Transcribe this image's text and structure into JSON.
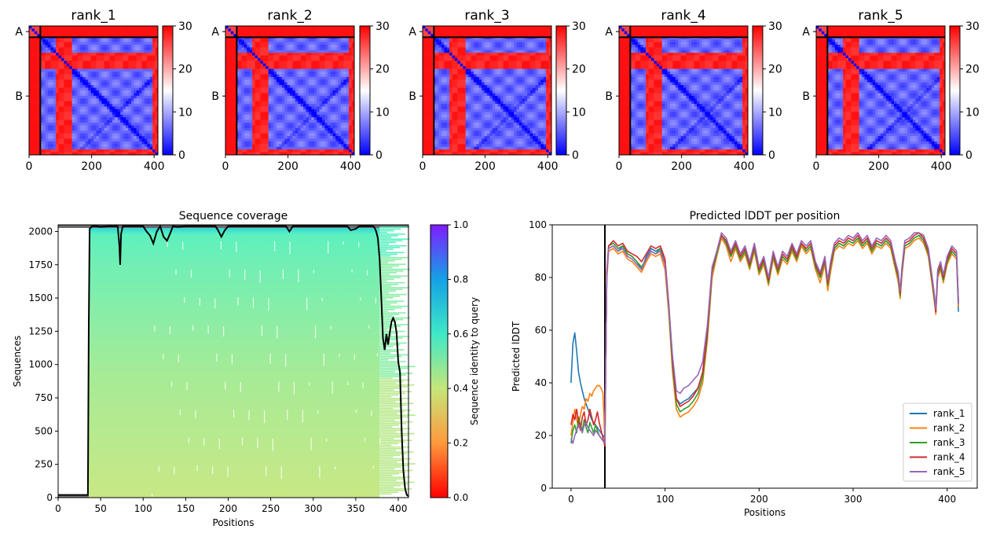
{
  "chart_data": [
    {
      "type": "heatmap",
      "kind": "pae",
      "title": "rank_1",
      "x_ticks": [
        0,
        200,
        400
      ],
      "y_ticks": [
        "A",
        "B"
      ],
      "chain_a_length": 36,
      "length": 412,
      "colorbar": {
        "ticks": [
          0,
          10,
          20,
          30
        ],
        "range": [
          0,
          30
        ],
        "colormap": "bwr"
      }
    },
    {
      "type": "heatmap",
      "kind": "pae",
      "title": "rank_2",
      "x_ticks": [
        0,
        200,
        400
      ],
      "y_ticks": [
        "A",
        "B"
      ],
      "chain_a_length": 36,
      "length": 412,
      "colorbar": {
        "ticks": [
          0,
          10,
          20,
          30
        ],
        "range": [
          0,
          30
        ],
        "colormap": "bwr"
      }
    },
    {
      "type": "heatmap",
      "kind": "pae",
      "title": "rank_3",
      "x_ticks": [
        0,
        200,
        400
      ],
      "y_ticks": [
        "A",
        "B"
      ],
      "chain_a_length": 36,
      "length": 412,
      "colorbar": {
        "ticks": [
          0,
          10,
          20,
          30
        ],
        "range": [
          0,
          30
        ],
        "colormap": "bwr"
      }
    },
    {
      "type": "heatmap",
      "kind": "pae",
      "title": "rank_4",
      "x_ticks": [
        0,
        200,
        400
      ],
      "y_ticks": [
        "A",
        "B"
      ],
      "chain_a_length": 36,
      "length": 412,
      "colorbar": {
        "ticks": [
          0,
          10,
          20,
          30
        ],
        "range": [
          0,
          30
        ],
        "colormap": "bwr"
      }
    },
    {
      "type": "heatmap",
      "kind": "pae",
      "title": "rank_5",
      "x_ticks": [
        0,
        200,
        400
      ],
      "y_ticks": [
        "A",
        "B"
      ],
      "chain_a_length": 36,
      "length": 412,
      "colorbar": {
        "ticks": [
          0,
          10,
          20,
          30
        ],
        "range": [
          0,
          30
        ],
        "colormap": "bwr"
      }
    },
    {
      "type": "heatmap",
      "kind": "coverage",
      "title": "Sequence coverage",
      "xlabel": "Positions",
      "ylabel": "Sequences",
      "xlim": [
        0,
        412
      ],
      "ylim": [
        0,
        2050
      ],
      "x_ticks": [
        0,
        50,
        100,
        150,
        200,
        250,
        300,
        350,
        400
      ],
      "y_ticks": [
        0,
        250,
        500,
        750,
        1000,
        1250,
        1500,
        1750,
        2000
      ],
      "colorbar_label": "Sequence identity to query",
      "colorbar_ticks": [
        0.0,
        0.2,
        0.4,
        0.6,
        0.8,
        1.0
      ],
      "colorbar_tick_labels": [
        "0.0",
        "0.2",
        "0.4",
        "0.6",
        "0.8",
        "1.0"
      ],
      "total_sequences": 2050,
      "query_rows": 20,
      "msa_start": 36,
      "coverage_line": {
        "x": [
          0,
          35,
          36,
          37,
          40,
          45,
          50,
          60,
          70,
          72,
          73,
          74,
          76,
          80,
          100,
          104,
          108,
          112,
          116,
          120,
          124,
          128,
          132,
          135,
          140,
          150,
          160,
          185,
          188,
          192,
          196,
          200,
          220,
          250,
          268,
          272,
          276,
          280,
          300,
          340,
          344,
          350,
          354,
          358,
          360,
          365,
          370,
          372,
          374,
          376,
          378,
          380,
          382,
          384,
          386,
          388,
          390,
          392,
          394,
          396,
          398,
          400,
          402,
          404,
          406,
          408,
          410,
          412
        ],
        "y": [
          20,
          20,
          1300,
          2020,
          2040,
          2040,
          2035,
          2040,
          2040,
          1900,
          1750,
          1980,
          2040,
          2040,
          2040,
          2000,
          1970,
          1910,
          2000,
          2040,
          1960,
          1930,
          1990,
          2040,
          2035,
          2040,
          2040,
          2040,
          2010,
          1960,
          2010,
          2040,
          2040,
          2040,
          2040,
          2000,
          2040,
          2040,
          2040,
          2040,
          2010,
          2020,
          2040,
          2040,
          2040,
          2040,
          2040,
          2030,
          2000,
          1950,
          1800,
          1500,
          1200,
          1110,
          1230,
          1150,
          1240,
          1320,
          1350,
          1320,
          1240,
          1020,
          940,
          500,
          200,
          70,
          20,
          10
        ]
      }
    },
    {
      "type": "line",
      "title": "Predicted lDDT per position",
      "xlabel": "Positions",
      "ylabel": "Predicted lDDT",
      "xlim": [
        -20,
        432
      ],
      "ylim": [
        0,
        100
      ],
      "x_ticks": [
        0,
        100,
        200,
        300,
        400
      ],
      "y_ticks": [
        0,
        20,
        40,
        60,
        80,
        100
      ],
      "legend": "lower-right",
      "vline_x": 36,
      "x": [
        0,
        2,
        4,
        6,
        8,
        10,
        12,
        14,
        16,
        18,
        20,
        22,
        24,
        26,
        28,
        30,
        32,
        34,
        36,
        38,
        40,
        45,
        50,
        55,
        60,
        65,
        70,
        75,
        80,
        85,
        90,
        95,
        100,
        104,
        108,
        112,
        116,
        120,
        125,
        130,
        135,
        140,
        145,
        150,
        155,
        160,
        165,
        170,
        175,
        180,
        185,
        190,
        195,
        200,
        205,
        210,
        215,
        220,
        225,
        230,
        235,
        240,
        245,
        250,
        255,
        260,
        265,
        270,
        273,
        276,
        280,
        285,
        290,
        295,
        300,
        305,
        310,
        315,
        320,
        325,
        330,
        335,
        340,
        345,
        348,
        350,
        352,
        355,
        360,
        365,
        370,
        375,
        380,
        383,
        386,
        388,
        390,
        393,
        396,
        400,
        405,
        410,
        412
      ],
      "series": [
        {
          "name": "rank_1",
          "color": "#1f77b4",
          "values": [
            40,
            55,
            59,
            52,
            44,
            40,
            37,
            34,
            32,
            30,
            28,
            26,
            25,
            24,
            23,
            22,
            21,
            20,
            19,
            80,
            91,
            92,
            90,
            92,
            89,
            88,
            86,
            83,
            88,
            91,
            90,
            91,
            85,
            68,
            48,
            34,
            32,
            33,
            34,
            36,
            38,
            44,
            60,
            82,
            89,
            96,
            93,
            88,
            92,
            87,
            90,
            84,
            91,
            82,
            86,
            78,
            88,
            82,
            88,
            86,
            91,
            87,
            93,
            90,
            92,
            84,
            80,
            86,
            78,
            84,
            91,
            93,
            92,
            94,
            93,
            95,
            92,
            94,
            90,
            93,
            92,
            94,
            92,
            84,
            80,
            74,
            82,
            92,
            93,
            95,
            96,
            94,
            89,
            82,
            74,
            68,
            82,
            84,
            80,
            86,
            90,
            88,
            67
          ]
        },
        {
          "name": "rank_2",
          "color": "#ff7f0e",
          "values": [
            20,
            25,
            30,
            26,
            23,
            28,
            31,
            30,
            34,
            33,
            36,
            35,
            37,
            38,
            39,
            39,
            38,
            36,
            18,
            79,
            90,
            91,
            89,
            90,
            87,
            86,
            84,
            82,
            86,
            89,
            88,
            89,
            83,
            66,
            44,
            30,
            27,
            28,
            29,
            31,
            34,
            40,
            56,
            80,
            88,
            95,
            92,
            86,
            91,
            86,
            89,
            83,
            90,
            81,
            85,
            77,
            87,
            81,
            87,
            85,
            90,
            86,
            92,
            89,
            91,
            83,
            78,
            85,
            75,
            82,
            90,
            92,
            91,
            93,
            92,
            94,
            91,
            93,
            89,
            92,
            91,
            93,
            91,
            83,
            78,
            72,
            81,
            91,
            92,
            94,
            95,
            93,
            88,
            80,
            72,
            66,
            80,
            83,
            78,
            85,
            89,
            87,
            69
          ]
        },
        {
          "name": "rank_3",
          "color": "#2ca02c",
          "values": [
            17,
            22,
            24,
            21,
            27,
            24,
            22,
            26,
            23,
            21,
            25,
            23,
            21,
            24,
            22,
            20,
            19,
            18,
            17,
            81,
            92,
            93,
            91,
            92,
            89,
            88,
            86,
            84,
            87,
            90,
            89,
            91,
            85,
            68,
            46,
            32,
            29,
            30,
            31,
            33,
            36,
            42,
            58,
            82,
            89,
            96,
            93,
            88,
            92,
            87,
            90,
            84,
            91,
            82,
            86,
            78,
            88,
            82,
            88,
            86,
            91,
            87,
            93,
            90,
            92,
            84,
            80,
            86,
            77,
            84,
            91,
            93,
            92,
            94,
            93,
            95,
            92,
            94,
            90,
            93,
            92,
            94,
            92,
            84,
            80,
            73,
            82,
            92,
            93,
            95,
            96,
            94,
            89,
            81,
            73,
            67,
            81,
            84,
            79,
            86,
            90,
            88,
            70
          ]
        },
        {
          "name": "rank_4",
          "color": "#d62728",
          "values": [
            24,
            28,
            26,
            30,
            25,
            22,
            27,
            29,
            24,
            26,
            30,
            27,
            24,
            26,
            29,
            25,
            22,
            19,
            16,
            82,
            92,
            94,
            92,
            93,
            90,
            89,
            88,
            86,
            89,
            92,
            91,
            92,
            87,
            70,
            48,
            34,
            31,
            32,
            33,
            35,
            38,
            44,
            60,
            83,
            90,
            96,
            94,
            89,
            93,
            88,
            91,
            85,
            92,
            83,
            87,
            79,
            89,
            83,
            89,
            87,
            92,
            88,
            93,
            91,
            93,
            85,
            81,
            87,
            78,
            85,
            92,
            94,
            93,
            95,
            94,
            96,
            93,
            95,
            91,
            94,
            93,
            95,
            93,
            85,
            81,
            74,
            83,
            93,
            94,
            96,
            97,
            95,
            90,
            82,
            74,
            67,
            82,
            85,
            80,
            87,
            91,
            89,
            71
          ]
        },
        {
          "name": "rank_5",
          "color": "#9467bd",
          "values": [
            19,
            17,
            20,
            22,
            24,
            23,
            21,
            24,
            25,
            23,
            22,
            21,
            20,
            22,
            21,
            20,
            19,
            18,
            17,
            80,
            91,
            92,
            90,
            91,
            88,
            87,
            85,
            83,
            87,
            90,
            89,
            90,
            85,
            69,
            50,
            37,
            36,
            38,
            39,
            41,
            43,
            48,
            62,
            84,
            90,
            97,
            95,
            90,
            94,
            89,
            92,
            86,
            93,
            84,
            88,
            80,
            90,
            84,
            90,
            88,
            93,
            89,
            94,
            92,
            94,
            86,
            82,
            88,
            79,
            86,
            93,
            95,
            94,
            96,
            95,
            97,
            94,
            96,
            92,
            95,
            94,
            96,
            94,
            86,
            82,
            75,
            84,
            94,
            95,
            97,
            97,
            96,
            91,
            83,
            75,
            68,
            83,
            86,
            81,
            88,
            92,
            90,
            70
          ]
        }
      ]
    }
  ]
}
